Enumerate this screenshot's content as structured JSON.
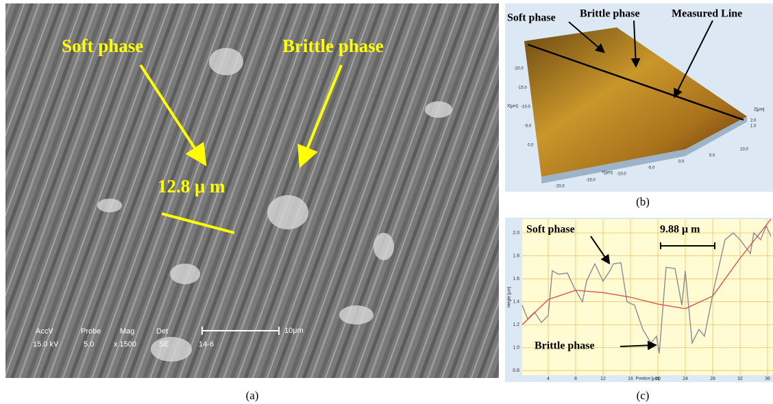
{
  "panel_a": {
    "soft_label": "Soft phase",
    "brittle_label": "Brittle phase",
    "width_label": "12.8 μ m",
    "databar": {
      "headers": [
        "AccV",
        "Probe",
        "Mag",
        "Det"
      ],
      "values": [
        "15.0 kV",
        "5.0",
        "x 1500",
        "SE",
        "14-6"
      ],
      "scale": "10μm"
    },
    "caption": "(a)"
  },
  "panel_b": {
    "soft_label": "Soft phase",
    "brittle_label": "Brittle phase",
    "line_label": "Measured Line",
    "x_axis_ticks": [
      "-20.0",
      "-15.0",
      "-10.0",
      "-5.0",
      "0.0"
    ],
    "x_axis_label": "X[μm]",
    "y_axis_ticks": [
      "-20.0",
      "-15.0",
      "-10.0",
      "-5.0",
      "0.0",
      "5.0",
      "10.0"
    ],
    "y_axis_label": "Y[μm]",
    "z_axis_ticks": [
      "2.0",
      "1.0"
    ],
    "z_axis_label": "Z[μm]",
    "caption": "(b)"
  },
  "panel_c": {
    "soft_label": "Soft phase",
    "width_label": "9.88 μ m",
    "brittle_label": "Brittle phase",
    "caption": "(c)",
    "chart_data": {
      "type": "line",
      "xlabel": "Position [μm]",
      "ylabel": "Height [μm]",
      "xlim": [
        0.2,
        36.8
      ],
      "ylim": [
        0.76,
        2.12
      ],
      "xticks": [
        4,
        8,
        12,
        16,
        20,
        24,
        28,
        32,
        36
      ],
      "yticks": [
        0.8,
        {
          "value": 1,
          "label": "1.0"
        },
        1.2,
        1.4,
        1.6,
        1.8,
        {
          "value": 2,
          "label": "2.0"
        }
      ],
      "grid": true,
      "series": [
        {
          "color": "#8a8a9a",
          "x": [
            0.2,
            1,
            2,
            3,
            4,
            4.6,
            5.5,
            6.8,
            7.8,
            9,
            9.6,
            10.8,
            12,
            13,
            13.5,
            14.6,
            15.5,
            16.6,
            17.8,
            19,
            19.8,
            20.2,
            21.2,
            22.5,
            23.5,
            24,
            25,
            26,
            26.8,
            28.2,
            29.8,
            31,
            32,
            33.5,
            34,
            35,
            35.8,
            36.5
          ],
          "values": [
            1.37,
            1.25,
            1.31,
            1.22,
            1.28,
            1.67,
            1.64,
            1.65,
            1.52,
            1.4,
            1.58,
            1.73,
            1.58,
            1.67,
            1.73,
            1.74,
            1.4,
            1.37,
            1.16,
            1.04,
            1.1,
            0.95,
            1.7,
            1.69,
            1.37,
            1.67,
            1.04,
            1.16,
            1.1,
            1.52,
            1.94,
            2.0,
            1.94,
            1.82,
            2.0,
            1.94,
            2.06,
            1.97
          ]
        },
        {
          "color": "#d9534f",
          "x": [
            0.2,
            4,
            8,
            12,
            16,
            20,
            24,
            28,
            32,
            36.5
          ],
          "values": [
            1.2,
            1.42,
            1.5,
            1.48,
            1.44,
            1.38,
            1.34,
            1.45,
            1.78,
            2.12
          ]
        }
      ]
    }
  }
}
